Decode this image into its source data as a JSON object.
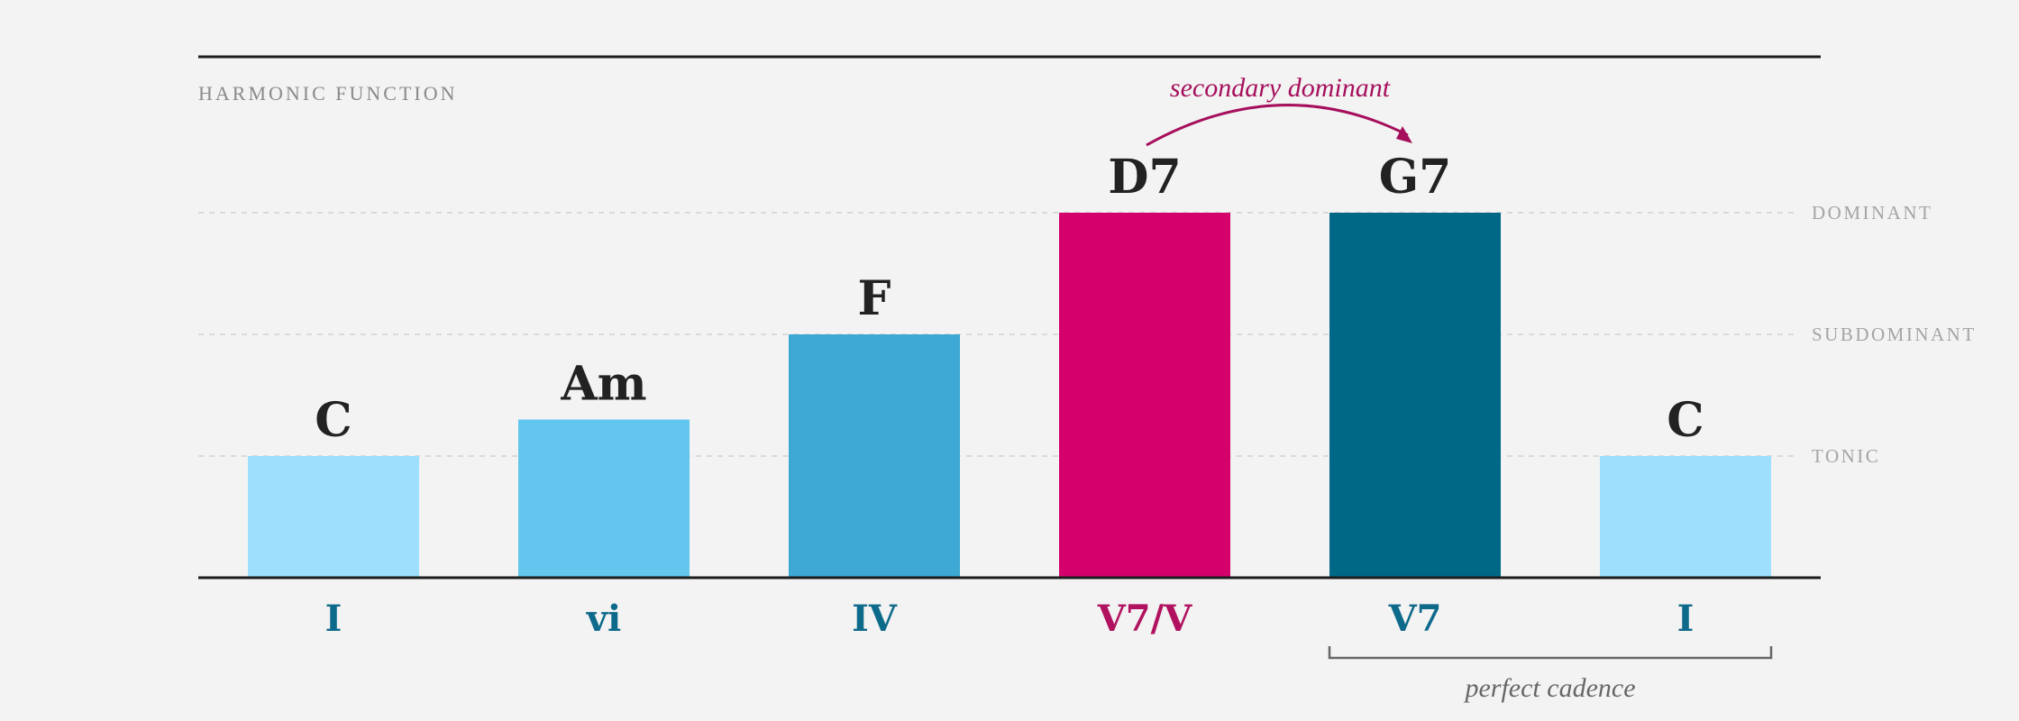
{
  "chart_data": {
    "type": "bar",
    "ylabel": "HARMONIC FUNCTION",
    "levels": [
      {
        "name": "TONIC",
        "value": 1
      },
      {
        "name": "SUBDOMINANT",
        "value": 2
      },
      {
        "name": "DOMINANT",
        "value": 3
      }
    ],
    "ylim": [
      0,
      3
    ],
    "grid": true,
    "categories": [
      "I",
      "vi",
      "IV",
      "V7/V",
      "V7",
      "I"
    ],
    "chords": [
      "C",
      "Am",
      "F",
      "D7",
      "G7",
      "C"
    ],
    "values": [
      1.0,
      1.3,
      2.0,
      3.0,
      3.0,
      1.0
    ],
    "colors": [
      "#9ddffc",
      "#62c6ef",
      "#3ca8d3",
      "#d4006c",
      "#006887",
      "#9ddffc"
    ],
    "label_colors": [
      "#0d6a8a",
      "#0d6a8a",
      "#0d6a8a",
      "#b0125f",
      "#0d6a8a",
      "#0d6a8a"
    ],
    "annotations": [
      {
        "text": "secondary dominant",
        "from_index": 3,
        "to_index": 4,
        "kind": "arc",
        "color": "#a50f5c"
      },
      {
        "text": "perfect cadence",
        "from_index": 4,
        "to_index": 5,
        "kind": "bracket",
        "color": "#666666"
      }
    ]
  }
}
